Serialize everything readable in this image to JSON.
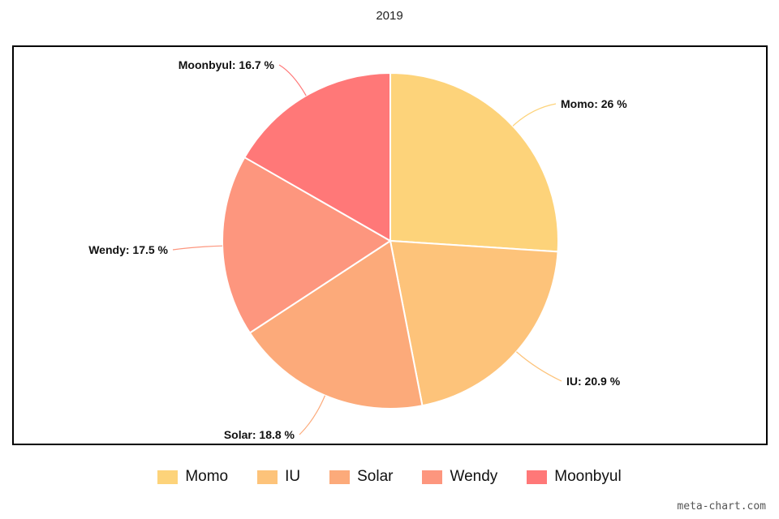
{
  "chart_data": {
    "type": "pie",
    "title": "2019",
    "categories": [
      "Momo",
      "IU",
      "Solar",
      "Wendy",
      "Moonbyul"
    ],
    "values": [
      26,
      20.9,
      18.8,
      17.5,
      16.7
    ],
    "labels": [
      "Momo: 26 %",
      "IU: 20.9 %",
      "Solar: 18.8 %",
      "Wendy: 17.5 %",
      "Moonbyul: 16.7 %"
    ],
    "colors": [
      "#fdd37a",
      "#fdc37a",
      "#fcaa7a",
      "#fd967e",
      "#ff7878"
    ],
    "legend": "bottom"
  },
  "watermark": "meta-chart.com"
}
